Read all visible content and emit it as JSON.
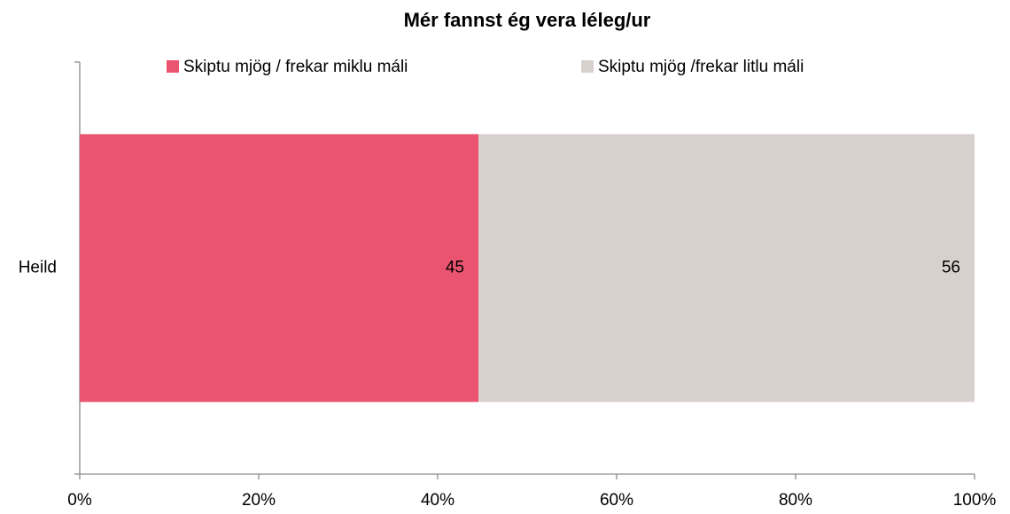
{
  "chart_data": {
    "type": "bar",
    "orientation": "horizontal",
    "stack": "percent",
    "title": "Mér fannst ég vera léleg/ur",
    "categories": [
      "Heild"
    ],
    "series": [
      {
        "name": "Skiptu mjög / frekar  miklu máli",
        "color": "#eb5470",
        "values": [
          45
        ]
      },
      {
        "name": "Skiptu mjög /frekar litlu máli",
        "color": "#d8d0cd",
        "values": [
          56
        ]
      }
    ],
    "xlim": [
      0,
      100
    ],
    "xticks": [
      {
        "value": 0,
        "label": "0%"
      },
      {
        "value": 20,
        "label": "20%"
      },
      {
        "value": 40,
        "label": "40%"
      },
      {
        "value": 60,
        "label": "60%"
      },
      {
        "value": 80,
        "label": "80%"
      },
      {
        "value": 100,
        "label": "100%"
      }
    ],
    "legend": "top"
  }
}
